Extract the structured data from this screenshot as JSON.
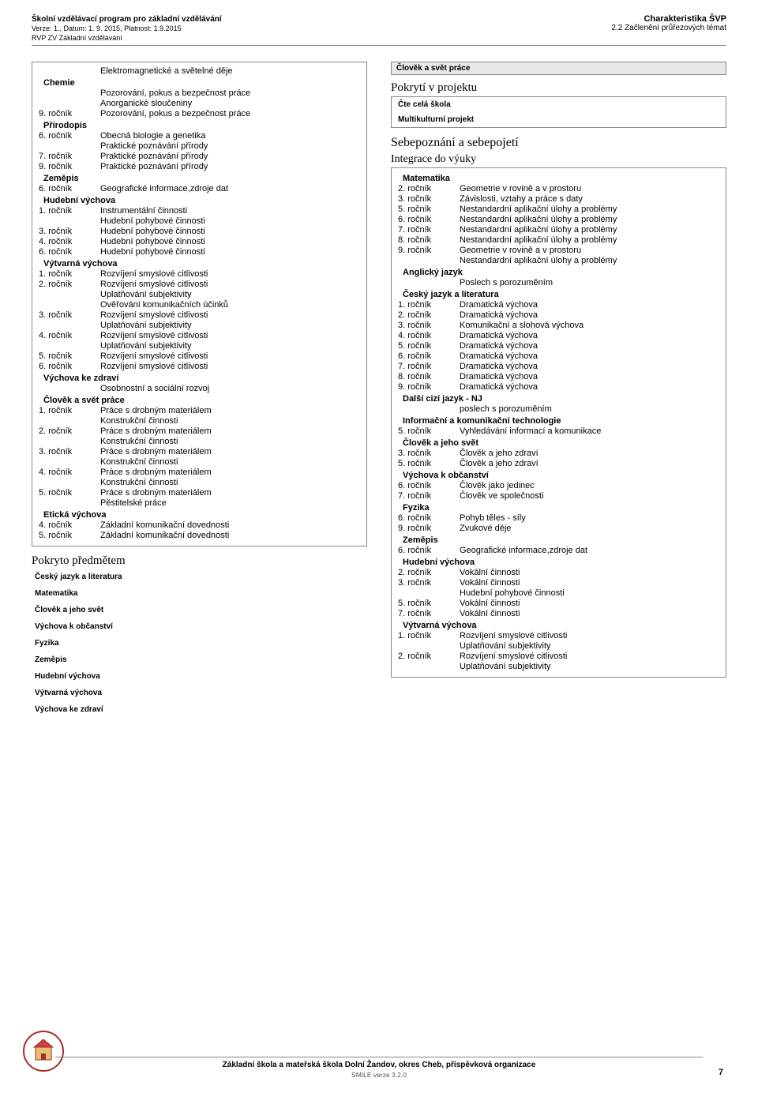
{
  "header": {
    "program_title": "Školní vzdělávací program pro základní vzdělávání",
    "version_line": "Verze: 1., Datum: 1. 9. 2015, Platnost: 1.9.2015",
    "rvp_line": "RVP ZV Základní vzdělávání",
    "brand": "Charakteristika ŠVP",
    "subline": "2.2 Začlenění průřezových témat"
  },
  "left_block1": {
    "rows": [
      {
        "grade": "",
        "topic": "Elektromagnetické a světelné děje"
      },
      {
        "subject": "Chemie"
      },
      {
        "grade": "",
        "topic": "Pozorování, pokus a bezpečnost práce"
      },
      {
        "grade": "",
        "topic": "Anorganické sloučeniny"
      },
      {
        "grade": "9. ročník",
        "topic": "Pozorování, pokus a bezpečnost práce"
      },
      {
        "subject": "Přírodopis"
      },
      {
        "grade": "6. ročník",
        "topic": "Obecná biologie a genetika"
      },
      {
        "grade": "",
        "topic": "Praktické poznávání přírody"
      },
      {
        "grade": "7. ročník",
        "topic": "Praktické poznávání přírody"
      },
      {
        "grade": "9. ročník",
        "topic": "Praktické poznávání přírody"
      },
      {
        "subject": "Zeměpis"
      },
      {
        "grade": "6. ročník",
        "topic": "Geografické informace,zdroje dat"
      },
      {
        "subject": "Hudební výchova"
      },
      {
        "grade": "1. ročník",
        "topic": "Instrumentální činnosti"
      },
      {
        "grade": "",
        "topic": "Hudební pohybové činnosti"
      },
      {
        "grade": "3. ročník",
        "topic": "Hudební pohybové činnosti"
      },
      {
        "grade": "4. ročník",
        "topic": "Hudební pohybové činnosti"
      },
      {
        "grade": "6. ročník",
        "topic": "Hudební pohybové činnosti"
      },
      {
        "subject": "Výtvarná výchova"
      },
      {
        "grade": "1. ročník",
        "topic": "Rozvíjení smyslové citlivosti"
      },
      {
        "grade": "2. ročník",
        "topic": "Rozvíjení smyslové citlivosti"
      },
      {
        "grade": "",
        "topic": "Uplatňování subjektivity"
      },
      {
        "grade": "",
        "topic": "Ověřování komunikačních účinků"
      },
      {
        "grade": "3. ročník",
        "topic": "Rozvíjení smyslové citlivosti"
      },
      {
        "grade": "",
        "topic": "Uplatňování subjektivity"
      },
      {
        "grade": "4. ročník",
        "topic": "Rozvíjení smyslové citlivosti"
      },
      {
        "grade": "",
        "topic": "Uplatňování subjektivity"
      },
      {
        "grade": "5. ročník",
        "topic": "Rozvíjení smyslové citlivosti"
      },
      {
        "grade": "6. ročník",
        "topic": "Rozvíjení smyslové citlivosti"
      },
      {
        "subject": "Výchova ke zdraví"
      },
      {
        "grade": "",
        "topic": "Osobnostní a sociální rozvoj"
      },
      {
        "subject": "Člověk a svět práce"
      },
      {
        "grade": "1. ročník",
        "topic": "Práce s drobným materiálem"
      },
      {
        "grade": "",
        "topic": "Konstrukční činnosti"
      },
      {
        "grade": "2. ročník",
        "topic": "Práce s drobným materiálem"
      },
      {
        "grade": "",
        "topic": "Konstrukční činnosti"
      },
      {
        "grade": "3. ročník",
        "topic": "Práce s drobným materiálem"
      },
      {
        "grade": "",
        "topic": "Konstrukční činnosti"
      },
      {
        "grade": "4. ročník",
        "topic": "Práce s drobným materiálem"
      },
      {
        "grade": "",
        "topic": "Konstrukční činnosti"
      },
      {
        "grade": "5. ročník",
        "topic": "Práce s drobným materiálem"
      },
      {
        "grade": "",
        "topic": "Pěstitelské práce"
      },
      {
        "subject": "Etická výchova"
      },
      {
        "grade": "4. ročník",
        "topic": "Základní komunikační dovednosti"
      },
      {
        "grade": "5. ročník",
        "topic": "Základní komunikační dovednosti"
      }
    ]
  },
  "pokryto_title": "Pokryto předmětem",
  "pokryto_items": [
    "Český jazyk a literatura",
    "Matematika",
    "Člověk a jeho svět",
    "Výchova k občanství",
    "Fyzika",
    "Zeměpis",
    "Hudební výchova",
    "Výtvarná výchova",
    "Výchova ke zdraví"
  ],
  "right_banner": "Člověk a svět práce",
  "pokryti_title": "Pokrytí v projektu",
  "cte_items": [
    "Čte celá škola",
    "Multikulturní projekt"
  ],
  "sebe_title": "Sebepoznání a sebepojetí",
  "integrace_title": "Integrace do výuky",
  "right_block": {
    "rows": [
      {
        "subject": "Matematika"
      },
      {
        "grade": "2. ročník",
        "topic": "Geometrie v rovině a v prostoru"
      },
      {
        "grade": "3. ročník",
        "topic": "Závislosti, vztahy a práce s daty"
      },
      {
        "grade": "5. ročník",
        "topic": "Nestandardní aplikační úlohy a problémy"
      },
      {
        "grade": "6. ročník",
        "topic": "Nestandardní aplikační úlohy a problémy"
      },
      {
        "grade": "7. ročník",
        "topic": "Nestandardní aplikační úlohy a problémy"
      },
      {
        "grade": "8. ročník",
        "topic": "Nestandardní aplikační úlohy a problémy"
      },
      {
        "grade": "9. ročník",
        "topic": "Geometrie v rovině a v prostoru"
      },
      {
        "grade": "",
        "topic": "Nestandardní aplikační úlohy a problémy"
      },
      {
        "subject": "Anglický jazyk"
      },
      {
        "grade": "",
        "topic": "Poslech s porozuměním"
      },
      {
        "subject": "Český jazyk a literatura"
      },
      {
        "grade": "1. ročník",
        "topic": "Dramatická výchova"
      },
      {
        "grade": "2. ročník",
        "topic": "Dramatická výchova"
      },
      {
        "grade": "3. ročník",
        "topic": "Komunikační a slohová výchova"
      },
      {
        "grade": "4. ročník",
        "topic": "Dramatická výchova"
      },
      {
        "grade": "5. ročník",
        "topic": "Dramatická výchova"
      },
      {
        "grade": "6. ročník",
        "topic": "Dramatická výchova"
      },
      {
        "grade": "7. ročník",
        "topic": "Dramatická výchova"
      },
      {
        "grade": "8. ročník",
        "topic": "Dramatická výchova"
      },
      {
        "grade": "9. ročník",
        "topic": "Dramatická výchova"
      },
      {
        "subject": "Další cizí jazyk - NJ"
      },
      {
        "grade": "",
        "topic": "poslech s porozuměním"
      },
      {
        "subject": "Informační a komunikační technologie"
      },
      {
        "grade": "5. ročník",
        "topic": "Vyhledávání informací a komunikace"
      },
      {
        "subject": "Člověk a jeho svět"
      },
      {
        "grade": "3. ročník",
        "topic": "Člověk a jeho zdraví"
      },
      {
        "grade": "5. ročník",
        "topic": "Člověk a jeho zdraví"
      },
      {
        "subject": "Výchova k občanství"
      },
      {
        "grade": "6. ročník",
        "topic": "Člověk jako jedinec"
      },
      {
        "grade": "7. ročník",
        "topic": "Člověk ve společnosti"
      },
      {
        "subject": "Fyzika"
      },
      {
        "grade": "6. ročník",
        "topic": "Pohyb těles - síly"
      },
      {
        "grade": "9. ročník",
        "topic": "Zvukové děje"
      },
      {
        "subject": "Zeměpis"
      },
      {
        "grade": "6. ročník",
        "topic": "Geografické informace,zdroje dat"
      },
      {
        "subject": "Hudební výchova"
      },
      {
        "grade": "2. ročník",
        "topic": "Vokální činnosti"
      },
      {
        "grade": "3. ročník",
        "topic": "Vokální činnosti"
      },
      {
        "grade": "",
        "topic": "Hudební pohybové činnosti"
      },
      {
        "grade": "5. ročník",
        "topic": "Vokální činnosti"
      },
      {
        "grade": "7. ročník",
        "topic": "Vokální činnosti"
      },
      {
        "subject": "Výtvarná výchova"
      },
      {
        "grade": "1. ročník",
        "topic": "Rozvíjení smyslové citlivosti"
      },
      {
        "grade": "",
        "topic": "Uplatňování subjektivity"
      },
      {
        "grade": "2. ročník",
        "topic": "Rozvíjení smyslové citlivosti"
      },
      {
        "grade": "",
        "topic": "Uplatňování subjektivity"
      }
    ]
  },
  "footer": {
    "school": "Základní škola a mateřská škola Dolní Žandov, okres Cheb, příspěvková organizace",
    "smile": "SMILE verze 3.2.0",
    "page": "7"
  }
}
